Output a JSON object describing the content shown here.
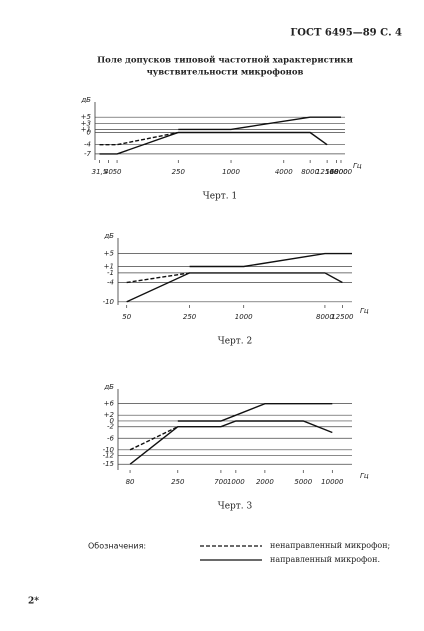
{
  "header": "ГОСТ 6495—89 С. 4",
  "title": [
    "Поле допусков типовой частотной характеристики",
    "чувствительности микрофонов"
  ],
  "chart_data": [
    {
      "type": "line",
      "caption": "Черт. 1",
      "y_label": "дБ",
      "x_label": "Гц",
      "xscale": "log",
      "xlim": [
        28,
        20000
      ],
      "ylim": [
        -9,
        8
      ],
      "xticks": [
        {
          "value": 31.5,
          "label": "31,5"
        },
        40,
        50,
        250,
        1000,
        4000,
        8000,
        12500,
        16000,
        18000
      ],
      "yticks": [
        {
          "value": 5,
          "label": "+5"
        },
        {
          "value": 3,
          "label": "+3"
        },
        {
          "value": 1,
          "label": "+1"
        },
        0,
        -4,
        -7
      ],
      "series": [
        {
          "style": "solid",
          "x": [
            31.5,
            50,
            250,
            8000,
            12500
          ],
          "y": [
            -7,
            -7,
            0,
            0,
            -4
          ]
        },
        {
          "style": "dashed",
          "x": [
            31.5,
            50,
            250
          ],
          "y": [
            -4,
            -4,
            0
          ]
        },
        {
          "style": "solid",
          "x": [
            250,
            1000,
            8000,
            18000
          ],
          "y": [
            1,
            1,
            5,
            5
          ]
        }
      ]
    },
    {
      "type": "line",
      "caption": "Черт. 2",
      "y_label": "дБ",
      "x_label": "Гц",
      "xscale": "log",
      "xlim": [
        40,
        16000
      ],
      "ylim": [
        -11,
        8
      ],
      "xticks": [
        50,
        250,
        1000,
        8000,
        12500
      ],
      "yticks": [
        {
          "value": 5,
          "label": "+5"
        },
        {
          "value": 1,
          "label": "+1"
        },
        -1,
        -4,
        -10
      ],
      "series": [
        {
          "style": "solid",
          "x": [
            50,
            250,
            8000,
            12500
          ],
          "y": [
            -10,
            -1,
            -1,
            -4
          ]
        },
        {
          "style": "dashed",
          "x": [
            50,
            250
          ],
          "y": [
            -4,
            -1
          ]
        },
        {
          "style": "solid",
          "x": [
            250,
            1000,
            8000,
            16000
          ],
          "y": [
            1,
            1,
            5,
            5
          ]
        }
      ]
    },
    {
      "type": "line",
      "caption": "Черт. 3",
      "y_label": "дБ",
      "x_label": "Гц",
      "xscale": "log",
      "xlim": [
        60,
        16000
      ],
      "ylim": [
        -17,
        9
      ],
      "xticks": [
        80,
        250,
        700,
        1000,
        2000,
        5000,
        10000
      ],
      "yticks": [
        {
          "value": 6,
          "label": "+6"
        },
        {
          "value": 2,
          "label": "+2"
        },
        0,
        -2,
        -6,
        -10,
        -12,
        -15
      ],
      "series": [
        {
          "style": "solid",
          "x": [
            80,
            250,
            700,
            1000,
            5000,
            10000
          ],
          "y": [
            -15,
            -2,
            -2,
            0,
            0,
            -4
          ]
        },
        {
          "style": "dashed",
          "x": [
            80,
            250
          ],
          "y": [
            -10,
            -2
          ]
        },
        {
          "style": "solid",
          "x": [
            250,
            700,
            1000,
            2000,
            10000
          ],
          "y": [
            0,
            0,
            2,
            6,
            6
          ]
        }
      ]
    }
  ],
  "legend": {
    "title": "Обозначения:",
    "items": [
      {
        "style": "dashed",
        "label": "ненаправленный микрофон;"
      },
      {
        "style": "solid",
        "label": "направленный микрофон."
      }
    ]
  },
  "page_number": "2*"
}
